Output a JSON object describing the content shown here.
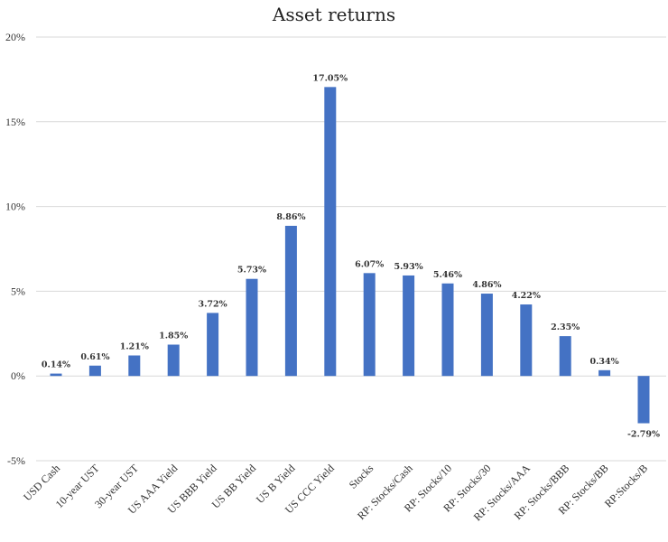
{
  "chart_data": {
    "type": "bar",
    "title": "Asset returns",
    "xlabel": "",
    "ylabel": "",
    "ylim": [
      -5,
      20
    ],
    "yticks": [
      -5,
      0,
      5,
      10,
      15,
      20
    ],
    "ytick_labels": [
      "-5%",
      "0%",
      "5%",
      "10%",
      "15%",
      "20%"
    ],
    "grid": true,
    "legend": "none",
    "bar_color": "#4472c4",
    "categories": [
      "USD Cash",
      "10-year UST",
      "30-year UST",
      "US AAA Yield",
      "US BBB Yield",
      "US BB Yield",
      "US B Yield",
      "US CCC Yield",
      "Stocks",
      "RP: Stocks/Cash",
      "RP: Stocks/10",
      "RP: Stocks/30",
      "RP: Stocks/AAA",
      "RP: Stocks/BBB",
      "RP: Stocks/BB",
      "RP:Stocks/B"
    ],
    "values": [
      0.14,
      0.61,
      1.21,
      1.85,
      3.72,
      5.73,
      8.86,
      17.05,
      6.07,
      5.93,
      5.46,
      4.86,
      4.22,
      2.35,
      0.34,
      -2.79
    ],
    "data_labels": [
      "0.14%",
      "0.61%",
      "1.21%",
      "1.85%",
      "3.72%",
      "5.73%",
      "8.86%",
      "17.05%",
      "6.07%",
      "5.93%",
      "5.46%",
      "4.86%",
      "4.22%",
      "2.35%",
      "0.34%",
      "-2.79%"
    ]
  }
}
